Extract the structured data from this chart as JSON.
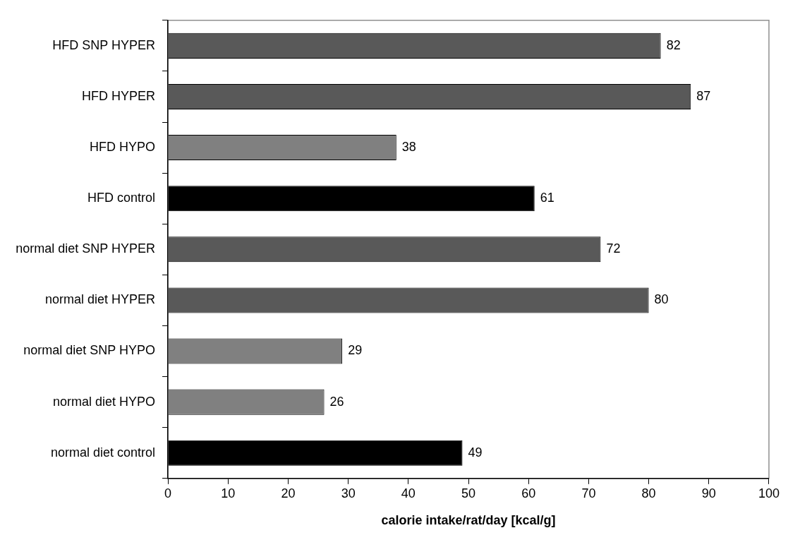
{
  "chart_data": {
    "type": "bar",
    "orientation": "horizontal",
    "xlabel": "calorie intake/rat/day [kcal/g]",
    "categories": [
      "HFD SNP HYPER",
      "HFD HYPER",
      "HFD HYPO",
      "HFD control",
      "normal diet SNP HYPER",
      "normal diet HYPER",
      "normal diet SNP HYPO",
      "normal diet HYPO",
      "normal diet control"
    ],
    "values": [
      82,
      87,
      38,
      61,
      72,
      80,
      29,
      26,
      49
    ],
    "colors": [
      "#595959",
      "#595959",
      "#808080",
      "#000000",
      "#595959",
      "#595959",
      "#808080",
      "#808080",
      "#000000"
    ],
    "xlim": [
      0,
      100
    ],
    "xticks": [
      0,
      10,
      20,
      30,
      40,
      50,
      60,
      70,
      80,
      90,
      100
    ],
    "data_labels": true,
    "grid": false,
    "legend": false
  }
}
